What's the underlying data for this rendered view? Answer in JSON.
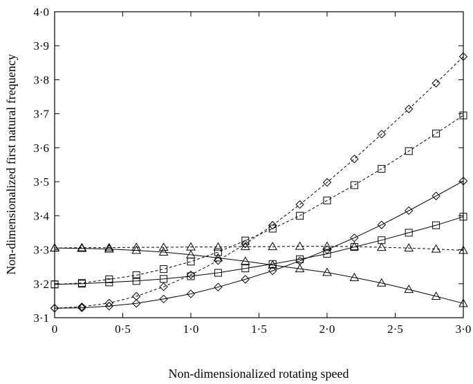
{
  "chart_data": {
    "type": "line",
    "title": "",
    "xlabel": "Non-dimensionalized rotating speed",
    "ylabel": "Non-dimensionalized first natural frequency",
    "xlim": [
      0,
      3.0
    ],
    "ylim": [
      3.1,
      4.0
    ],
    "xticks": [
      0,
      0.5,
      1.0,
      1.5,
      2.0,
      2.5,
      3.0
    ],
    "xtick_labels": [
      "0",
      "0·5",
      "1·0",
      "1·5",
      "2·0",
      "2·5",
      "3·0"
    ],
    "yticks": [
      3.1,
      3.2,
      3.3,
      3.4,
      3.5,
      3.6,
      3.7,
      3.8,
      3.9,
      4.0
    ],
    "ytick_labels": [
      "3·1",
      "3·2",
      "3·3",
      "3·4",
      "3·5",
      "3·6",
      "3·7",
      "3·8",
      "3·9",
      "4·0"
    ],
    "grid": false,
    "legend": "none",
    "x": [
      0,
      0.2,
      0.4,
      0.6,
      0.8,
      1.0,
      1.2,
      1.4,
      1.6,
      1.8,
      2.0,
      2.2,
      2.4,
      2.6,
      2.8,
      3.0
    ],
    "series": [
      {
        "marker": "diamond",
        "style": "solid",
        "values": [
          3.128,
          3.129,
          3.134,
          3.142,
          3.155,
          3.17,
          3.19,
          3.213,
          3.238,
          3.267,
          3.3,
          3.335,
          3.373,
          3.415,
          3.458,
          3.502
        ]
      },
      {
        "marker": "square",
        "style": "solid",
        "values": [
          3.198,
          3.2,
          3.204,
          3.208,
          3.214,
          3.222,
          3.232,
          3.245,
          3.258,
          3.272,
          3.288,
          3.308,
          3.328,
          3.35,
          3.372,
          3.397
        ]
      },
      {
        "marker": "triangle",
        "style": "solid",
        "values": [
          3.305,
          3.304,
          3.302,
          3.298,
          3.293,
          3.285,
          3.276,
          3.266,
          3.255,
          3.244,
          3.233,
          3.218,
          3.202,
          3.183,
          3.163,
          3.142
        ]
      },
      {
        "marker": "diamond",
        "style": "dashed",
        "values": [
          3.128,
          3.132,
          3.143,
          3.163,
          3.191,
          3.226,
          3.268,
          3.317,
          3.372,
          3.433,
          3.498,
          3.567,
          3.64,
          3.714,
          3.79,
          3.868
        ]
      },
      {
        "marker": "square",
        "style": "dashed",
        "values": [
          3.198,
          3.202,
          3.213,
          3.225,
          3.243,
          3.265,
          3.293,
          3.327,
          3.362,
          3.4,
          3.445,
          3.49,
          3.538,
          3.59,
          3.642,
          3.695
        ]
      },
      {
        "marker": "triangle",
        "style": "dashed",
        "values": [
          3.305,
          3.306,
          3.306,
          3.307,
          3.307,
          3.308,
          3.308,
          3.309,
          3.309,
          3.31,
          3.31,
          3.309,
          3.307,
          3.305,
          3.302,
          3.298
        ]
      }
    ]
  }
}
